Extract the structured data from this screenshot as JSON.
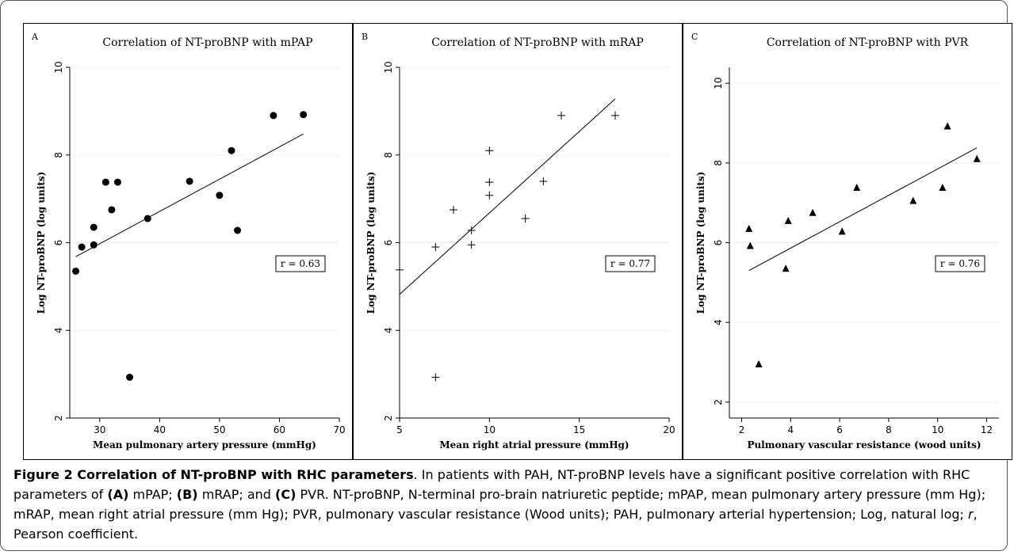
{
  "figure": {
    "caption": {
      "figure_title": "Figure 2 Correlation of NT-proBNP with RHC parameters",
      "seg1": ". In patients with PAH, NT-proBNP levels have a significant positive correlation with RHC parameters of ",
      "label_a": "(A)",
      "seg2": " mPAP; ",
      "label_b": "(B)",
      "seg3": " mRAP; and ",
      "label_c": "(C)",
      "seg4": " PVR. NT-proBNP, N-terminal pro-brain natriuretic peptide; mPAP, mean pulmonary artery pressure (mm Hg); mRAP, mean right atrial pressure (mm Hg); PVR, pulmonary vascular resistance (Wood units); PAH, pulmonary arterial hypertension; Log, natural log; ",
      "r_symbol": "r",
      "seg5": ", Pearson coefficient."
    }
  },
  "chart_data": [
    {
      "type": "scatter",
      "panel_label": "A",
      "title": "Correlation of NT-proBNP with mPAP",
      "xlabel": "Mean pulmonary artery pressure (mmHg)",
      "ylabel": "Log NT-proBNP (log units)",
      "xlim": [
        25,
        70
      ],
      "ylim": [
        2,
        10
      ],
      "xticks": [
        "30",
        "40",
        "50",
        "60",
        "70"
      ],
      "yticks": [
        "2",
        "4",
        "6",
        "8",
        "10"
      ],
      "xtick_values": [
        30,
        40,
        50,
        60,
        70
      ],
      "ytick_values": [
        2,
        4,
        6,
        8,
        10
      ],
      "grid": "horizontal",
      "marker": "circle",
      "annotation": "r = 0.63",
      "points": [
        [
          26,
          5.35
        ],
        [
          27,
          5.9
        ],
        [
          29,
          5.95
        ],
        [
          29,
          6.35
        ],
        [
          31,
          7.38
        ],
        [
          32,
          6.75
        ],
        [
          33,
          7.38
        ],
        [
          35,
          2.93
        ],
        [
          38,
          6.55
        ],
        [
          45,
          7.4
        ],
        [
          50,
          7.08
        ],
        [
          52,
          8.1
        ],
        [
          53,
          6.28
        ],
        [
          59,
          8.9
        ],
        [
          64,
          8.92
        ]
      ],
      "fit_line": [
        [
          26,
          5.68
        ],
        [
          64,
          8.48
        ]
      ]
    },
    {
      "type": "scatter",
      "panel_label": "B",
      "title": "Correlation of NT-proBNP with mRAP",
      "xlabel": "Mean right atrial pressure (mmHg)",
      "ylabel": "Log NT-proBNP (log units)",
      "xlim": [
        5,
        20
      ],
      "ylim": [
        2,
        10
      ],
      "xticks": [
        "5",
        "10",
        "15",
        "20"
      ],
      "yticks": [
        "2",
        "4",
        "6",
        "8",
        "10"
      ],
      "xtick_values": [
        5,
        10,
        15,
        20
      ],
      "ytick_values": [
        2,
        4,
        6,
        8,
        10
      ],
      "grid": "horizontal",
      "marker": "plus",
      "annotation": "r = 0.77",
      "points": [
        [
          5,
          5.38
        ],
        [
          7,
          2.93
        ],
        [
          7,
          5.9
        ],
        [
          8,
          6.75
        ],
        [
          9,
          5.95
        ],
        [
          9,
          6.28
        ],
        [
          10,
          7.08
        ],
        [
          10,
          7.38
        ],
        [
          10,
          8.1
        ],
        [
          12,
          6.55
        ],
        [
          13,
          7.4
        ],
        [
          14,
          8.9
        ],
        [
          17,
          8.9
        ]
      ],
      "fit_line": [
        [
          5,
          4.82
        ],
        [
          17,
          9.28
        ]
      ]
    },
    {
      "type": "scatter",
      "panel_label": "C",
      "title": "Correlation of NT-proBNP with PVR",
      "xlabel": "Pulmonary vascular resistance (wood units)",
      "ylabel": "Log NT-proBNP (log units)",
      "xlim": [
        1.5,
        12.5
      ],
      "ylim": [
        1.6,
        10.4
      ],
      "xticks": [
        "2",
        "4",
        "6",
        "8",
        "10",
        "12"
      ],
      "yticks": [
        "2",
        "4",
        "6",
        "8",
        "10"
      ],
      "xtick_values": [
        2,
        4,
        6,
        8,
        10,
        12
      ],
      "ytick_values": [
        2,
        4,
        6,
        8,
        10
      ],
      "grid": "horizontal",
      "marker": "triangle",
      "annotation": "r = 0.76",
      "points": [
        [
          2.3,
          6.35
        ],
        [
          2.35,
          5.92
        ],
        [
          2.7,
          2.95
        ],
        [
          3.8,
          5.35
        ],
        [
          3.9,
          6.55
        ],
        [
          4.9,
          6.75
        ],
        [
          6.1,
          6.28
        ],
        [
          6.7,
          7.38
        ],
        [
          9.0,
          7.05
        ],
        [
          10.2,
          7.38
        ],
        [
          10.4,
          8.92
        ],
        [
          11.6,
          8.1
        ]
      ],
      "fit_line": [
        [
          2.3,
          5.3
        ],
        [
          11.6,
          8.38
        ]
      ]
    }
  ]
}
